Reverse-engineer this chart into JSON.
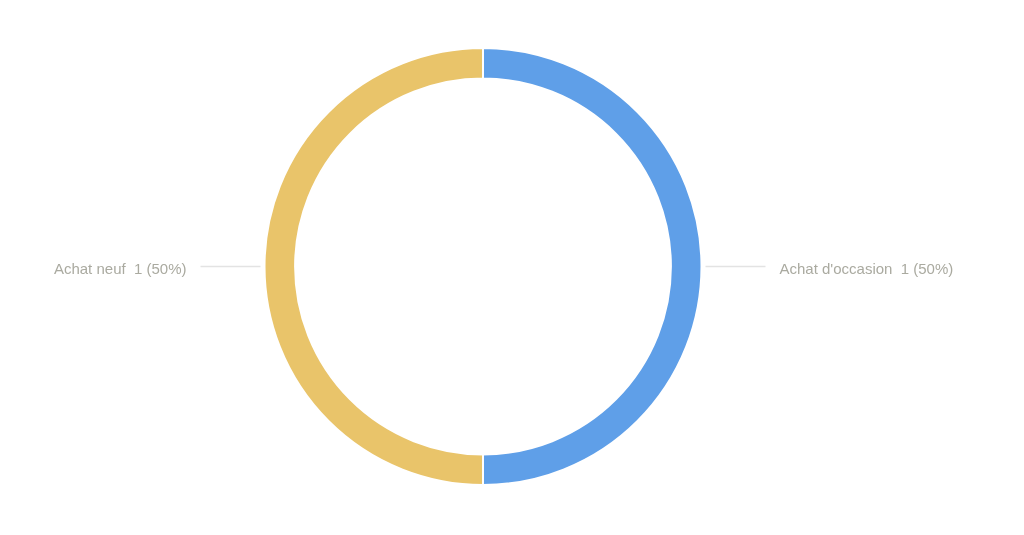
{
  "chart_data": {
    "type": "donut",
    "categories": [
      "Achat d'occasion",
      "Achat neuf"
    ],
    "values": [
      1,
      1
    ],
    "value_labels": [
      "1 (50%)",
      "1 (50%)"
    ],
    "colors": [
      "#5f9fe8",
      "#e9c46a"
    ],
    "legend": false
  }
}
